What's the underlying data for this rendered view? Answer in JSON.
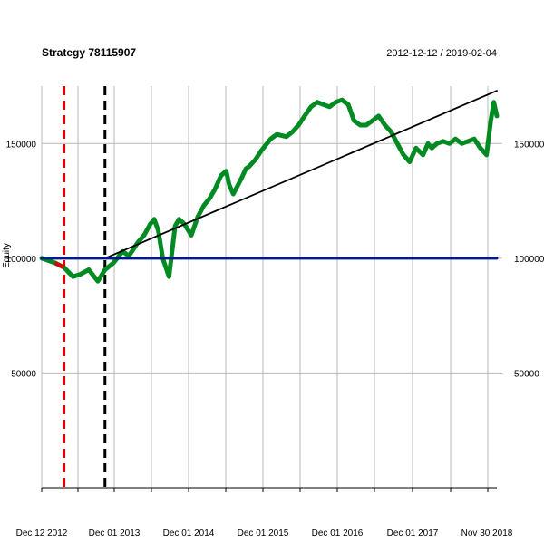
{
  "chart_data": {
    "type": "line",
    "title": "Strategy 78115907",
    "date_range": "2012-12-12 / 2019-02-04",
    "ylabel": "Equity",
    "xlabel": "",
    "x_ticks": [
      "Dec 12 2012",
      "Dec 01 2013",
      "Dec 01 2014",
      "Dec 01 2015",
      "Dec 01 2016",
      "Dec 01 2017",
      "Nov 30 2018"
    ],
    "y_ticks_left": [
      "50000",
      "100000",
      "150000"
    ],
    "y_ticks_right": [
      "50000",
      "100000",
      "150000"
    ],
    "y_tick_values": [
      50000,
      100000,
      150000
    ],
    "ylim": [
      0,
      175000
    ],
    "x_domain": [
      "2012-12-12",
      "2019-02-04"
    ],
    "grid": true,
    "series": [
      {
        "color": "#008a22",
        "x": [
          "2012-12-12",
          "2013-02-15",
          "2013-04-01",
          "2013-05-15",
          "2013-06-20",
          "2013-08-01",
          "2013-09-15",
          "2013-10-20",
          "2013-12-01",
          "2014-01-15",
          "2014-02-15",
          "2014-04-01",
          "2014-05-01",
          "2014-06-01",
          "2014-06-20",
          "2014-07-10",
          "2014-08-01",
          "2014-09-01",
          "2014-10-01",
          "2014-10-20",
          "2014-11-15",
          "2014-12-20",
          "2015-01-20",
          "2015-02-20",
          "2015-03-20",
          "2015-04-15",
          "2015-05-15",
          "2015-06-10",
          "2015-06-25",
          "2015-07-15",
          "2015-08-25",
          "2015-09-15",
          "2015-10-01",
          "2015-11-01",
          "2015-12-01",
          "2016-01-15",
          "2016-02-15",
          "2016-04-01",
          "2016-05-01",
          "2016-06-01",
          "2016-07-01",
          "2016-08-01",
          "2016-09-01",
          "2016-10-01",
          "2016-11-01",
          "2016-12-01",
          "2017-01-01",
          "2017-02-01",
          "2017-03-01",
          "2017-04-01",
          "2017-05-01",
          "2017-06-01",
          "2017-07-01",
          "2017-08-01",
          "2017-09-01",
          "2017-10-01",
          "2017-11-01",
          "2017-12-01",
          "2018-01-01",
          "2018-02-05",
          "2018-03-01",
          "2018-03-20",
          "2018-04-15",
          "2018-05-15",
          "2018-06-15",
          "2018-07-15",
          "2018-08-15",
          "2018-09-15",
          "2018-10-15",
          "2018-11-15",
          "2018-12-15",
          "2019-01-05",
          "2019-01-20",
          "2019-02-04"
        ],
        "values": [
          100000,
          98000,
          96000,
          92000,
          93000,
          95000,
          90000,
          95000,
          98000,
          103000,
          101000,
          107000,
          110000,
          115000,
          117000,
          112000,
          100000,
          92000,
          114000,
          117000,
          115000,
          110000,
          118000,
          123000,
          126000,
          130000,
          136000,
          138000,
          132000,
          128000,
          135000,
          139000,
          140000,
          143000,
          147000,
          152000,
          154000,
          153000,
          155000,
          158000,
          162000,
          166000,
          168000,
          167000,
          166000,
          168000,
          169000,
          167000,
          160000,
          158000,
          158000,
          160000,
          162000,
          158000,
          155000,
          150000,
          145000,
          142000,
          148000,
          145000,
          150000,
          148000,
          150000,
          151000,
          150000,
          152000,
          150000,
          151000,
          152000,
          148000,
          145000,
          160000,
          168000,
          162000
        ]
      },
      {
        "color": "#000000",
        "x": [
          "2013-10-20",
          "2019-02-04"
        ],
        "values": [
          100000,
          173000
        ]
      },
      {
        "color": "#001a8c",
        "x": [
          "2012-12-12",
          "2019-02-04"
        ],
        "values": [
          100000,
          100000
        ]
      }
    ],
    "vlines": [
      {
        "x": "2013-04-01",
        "color": "#e00000",
        "style": "dashed"
      },
      {
        "x": "2013-10-20",
        "color": "#000000",
        "style": "dashed"
      }
    ]
  }
}
